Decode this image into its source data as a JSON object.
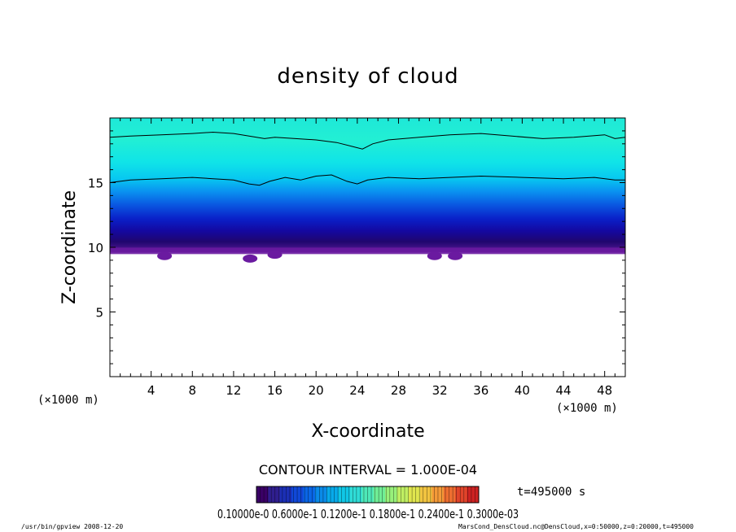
{
  "chart_data": {
    "type": "heatmap",
    "title": "density of cloud",
    "xlabel": "X-coordinate",
    "ylabel": "Z-coordinate",
    "x_unit": "(×1000 m)",
    "y_unit": "(×1000 m)",
    "xlim": [
      0,
      50
    ],
    "ylim": [
      0,
      20
    ],
    "x_ticks": [
      4,
      8,
      12,
      16,
      20,
      24,
      28,
      32,
      36,
      40,
      44,
      48
    ],
    "y_ticks": [
      5,
      10,
      15
    ],
    "cloud_base_z": 9.6,
    "cloud_base_dips": [
      {
        "x": 5.3,
        "z": 9.2
      },
      {
        "x": 13.6,
        "z": 9.0
      },
      {
        "x": 16.0,
        "z": 9.3
      },
      {
        "x": 31.5,
        "z": 9.2
      },
      {
        "x": 33.5,
        "z": 9.2
      }
    ],
    "contour_lines": [
      {
        "level_z": 18.6,
        "points": [
          [
            0,
            18.5
          ],
          [
            2,
            18.6
          ],
          [
            5,
            18.7
          ],
          [
            8,
            18.8
          ],
          [
            10,
            18.9
          ],
          [
            12,
            18.8
          ],
          [
            13.5,
            18.6
          ],
          [
            15,
            18.4
          ],
          [
            16,
            18.5
          ],
          [
            18,
            18.4
          ],
          [
            20,
            18.3
          ],
          [
            22,
            18.1
          ],
          [
            23.5,
            17.8
          ],
          [
            24.5,
            17.6
          ],
          [
            25.5,
            18.0
          ],
          [
            27,
            18.3
          ],
          [
            30,
            18.5
          ],
          [
            33,
            18.7
          ],
          [
            36,
            18.8
          ],
          [
            39,
            18.6
          ],
          [
            42,
            18.4
          ],
          [
            45,
            18.5
          ],
          [
            48,
            18.7
          ],
          [
            49,
            18.4
          ],
          [
            50,
            18.5
          ]
        ]
      },
      {
        "level_z": 15.0,
        "points": [
          [
            0,
            15.0
          ],
          [
            2,
            15.2
          ],
          [
            5,
            15.3
          ],
          [
            8,
            15.4
          ],
          [
            10,
            15.3
          ],
          [
            12,
            15.2
          ],
          [
            13.5,
            14.9
          ],
          [
            14.5,
            14.8
          ],
          [
            15.5,
            15.1
          ],
          [
            17,
            15.4
          ],
          [
            18.5,
            15.2
          ],
          [
            20,
            15.5
          ],
          [
            21.5,
            15.6
          ],
          [
            23,
            15.1
          ],
          [
            24,
            14.9
          ],
          [
            25,
            15.2
          ],
          [
            27,
            15.4
          ],
          [
            30,
            15.3
          ],
          [
            33,
            15.4
          ],
          [
            36,
            15.5
          ],
          [
            40,
            15.4
          ],
          [
            44,
            15.3
          ],
          [
            47,
            15.4
          ],
          [
            49,
            15.2
          ],
          [
            50,
            15.2
          ]
        ]
      }
    ],
    "colorbar": {
      "labels_text": "0.10000e-0 0.6000e-1 0.1200e-1 0.1800e-1 0.2400e-1 0.3000e-03",
      "colors": [
        "#3a0066",
        "#2f1e8e",
        "#1b2fb5",
        "#1048d8",
        "#0a66e6",
        "#0a8ae8",
        "#08aaea",
        "#10c7e6",
        "#2fdcd6",
        "#4ee8b8",
        "#70ee96",
        "#98f07a",
        "#c0ef62",
        "#e0e54e",
        "#f2c440",
        "#f49a38",
        "#ee6e30",
        "#e0442a",
        "#cc2222"
      ]
    }
  },
  "contour_interval_text": "CONTOUR INTERVAL = 1.000E-04",
  "time_text": "t=495000 s",
  "footer_left": "/usr/bin/gpview  2008-12-20",
  "footer_right": "MarsCond_DensCloud.nc@DensCloud,x=0:50000,z=0:20000,t=495000"
}
